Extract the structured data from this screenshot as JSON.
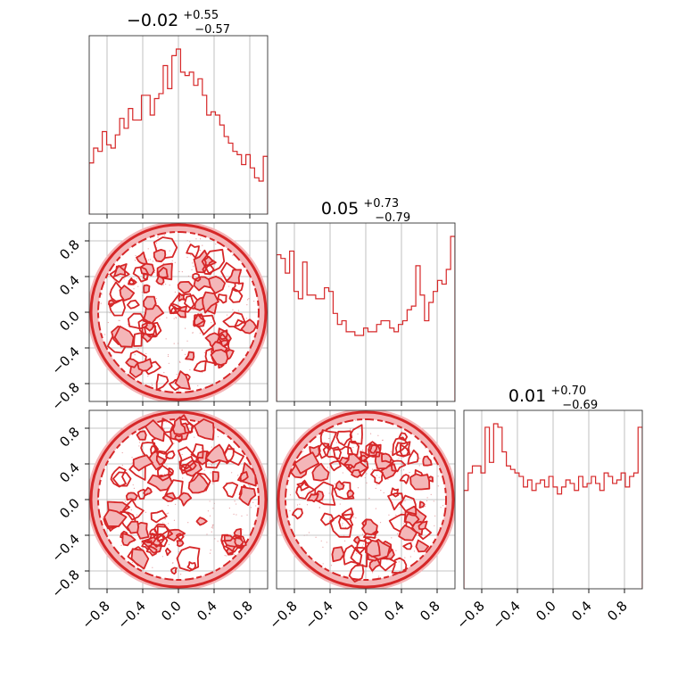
{
  "chart_data": {
    "type": "corner",
    "color": "#d62728",
    "fill_color": "#f4b6b8",
    "grid": true,
    "tick_values": [
      -0.8,
      -0.4,
      0.0,
      0.4,
      0.8
    ],
    "tick_labels": [
      "−0.8",
      "−0.4",
      "0.0",
      "0.4",
      "0.8"
    ],
    "x_range": [
      -1.0,
      1.0
    ],
    "y_range": [
      -1.0,
      1.0
    ],
    "titles": [
      {
        "median": "−0.02",
        "plus": "+0.55",
        "minus": "−0.57"
      },
      {
        "median": "0.05",
        "plus": "+0.73",
        "minus": "−0.79"
      },
      {
        "median": "0.01",
        "plus": "+0.70",
        "minus": "−0.69"
      }
    ],
    "histograms": [
      {
        "parameter": 0,
        "bin_range": [
          -1.0,
          1.0
        ],
        "counts": [
          0.31,
          0.4,
          0.38,
          0.5,
          0.42,
          0.4,
          0.48,
          0.58,
          0.52,
          0.64,
          0.57,
          0.57,
          0.72,
          0.72,
          0.6,
          0.7,
          0.73,
          0.9,
          0.76,
          0.96,
          1.0,
          0.86,
          0.84,
          0.86,
          0.78,
          0.82,
          0.72,
          0.6,
          0.62,
          0.6,
          0.54,
          0.47,
          0.43,
          0.38,
          0.36,
          0.3,
          0.36,
          0.28,
          0.22,
          0.2,
          0.35
        ]
      },
      {
        "parameter": 1,
        "bin_range": [
          -1.0,
          1.0
        ],
        "counts": [
          0.8,
          0.78,
          0.7,
          0.82,
          0.6,
          0.56,
          0.76,
          0.58,
          0.58,
          0.56,
          0.56,
          0.62,
          0.6,
          0.48,
          0.42,
          0.44,
          0.38,
          0.38,
          0.36,
          0.36,
          0.4,
          0.38,
          0.38,
          0.42,
          0.44,
          0.44,
          0.4,
          0.38,
          0.42,
          0.44,
          0.5,
          0.52,
          0.74,
          0.58,
          0.44,
          0.54,
          0.6,
          0.66,
          0.64,
          0.72,
          0.9
        ]
      },
      {
        "parameter": 2,
        "bin_range": [
          -1.0,
          1.0
        ],
        "counts": [
          0.56,
          0.66,
          0.7,
          0.7,
          0.66,
          0.92,
          0.72,
          0.94,
          0.92,
          0.78,
          0.7,
          0.68,
          0.66,
          0.64,
          0.58,
          0.62,
          0.56,
          0.6,
          0.62,
          0.58,
          0.64,
          0.58,
          0.54,
          0.58,
          0.62,
          0.6,
          0.56,
          0.64,
          0.58,
          0.6,
          0.64,
          0.6,
          0.56,
          0.66,
          0.64,
          0.6,
          0.62,
          0.66,
          0.58,
          0.64,
          0.66,
          0.92
        ]
      }
    ],
    "contour_panels": [
      {
        "x_parameter": 0,
        "y_parameter": 1,
        "support": "unit disk"
      },
      {
        "x_parameter": 0,
        "y_parameter": 2,
        "support": "unit disk"
      },
      {
        "x_parameter": 1,
        "y_parameter": 2,
        "support": "unit disk"
      }
    ]
  }
}
